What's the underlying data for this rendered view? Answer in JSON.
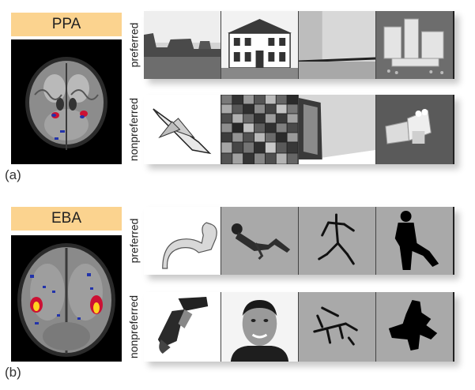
{
  "panels": [
    {
      "id": "a",
      "region": "PPA",
      "caption": "(a)",
      "rows": [
        {
          "label": "preferred",
          "images": [
            "desert-buttes-photo",
            "house-facade-photo",
            "empty-room-photo",
            "lego-blocks-scene"
          ]
        },
        {
          "label": "nonpreferred",
          "images": [
            "space-shuttle-photo",
            "scrambled-mosaic",
            "close-up-object-photo",
            "single-lego-object"
          ]
        }
      ]
    },
    {
      "id": "b",
      "region": "EBA",
      "caption": "(b)",
      "rows": [
        {
          "label": "preferred",
          "images": [
            "flexed-arm-photo",
            "reclining-person-photo",
            "stick-figure-body",
            "body-silhouette"
          ]
        },
        {
          "label": "nonpreferred",
          "images": [
            "hammer-photo",
            "face-photo",
            "scrambled-stick-figure",
            "scrambled-silhouette"
          ]
        }
      ]
    }
  ],
  "colors": {
    "region_tag": "#fbd38f",
    "activation_low": "#2233aa",
    "activation_mid": "#cc1133",
    "activation_high": "#ffd21f"
  }
}
